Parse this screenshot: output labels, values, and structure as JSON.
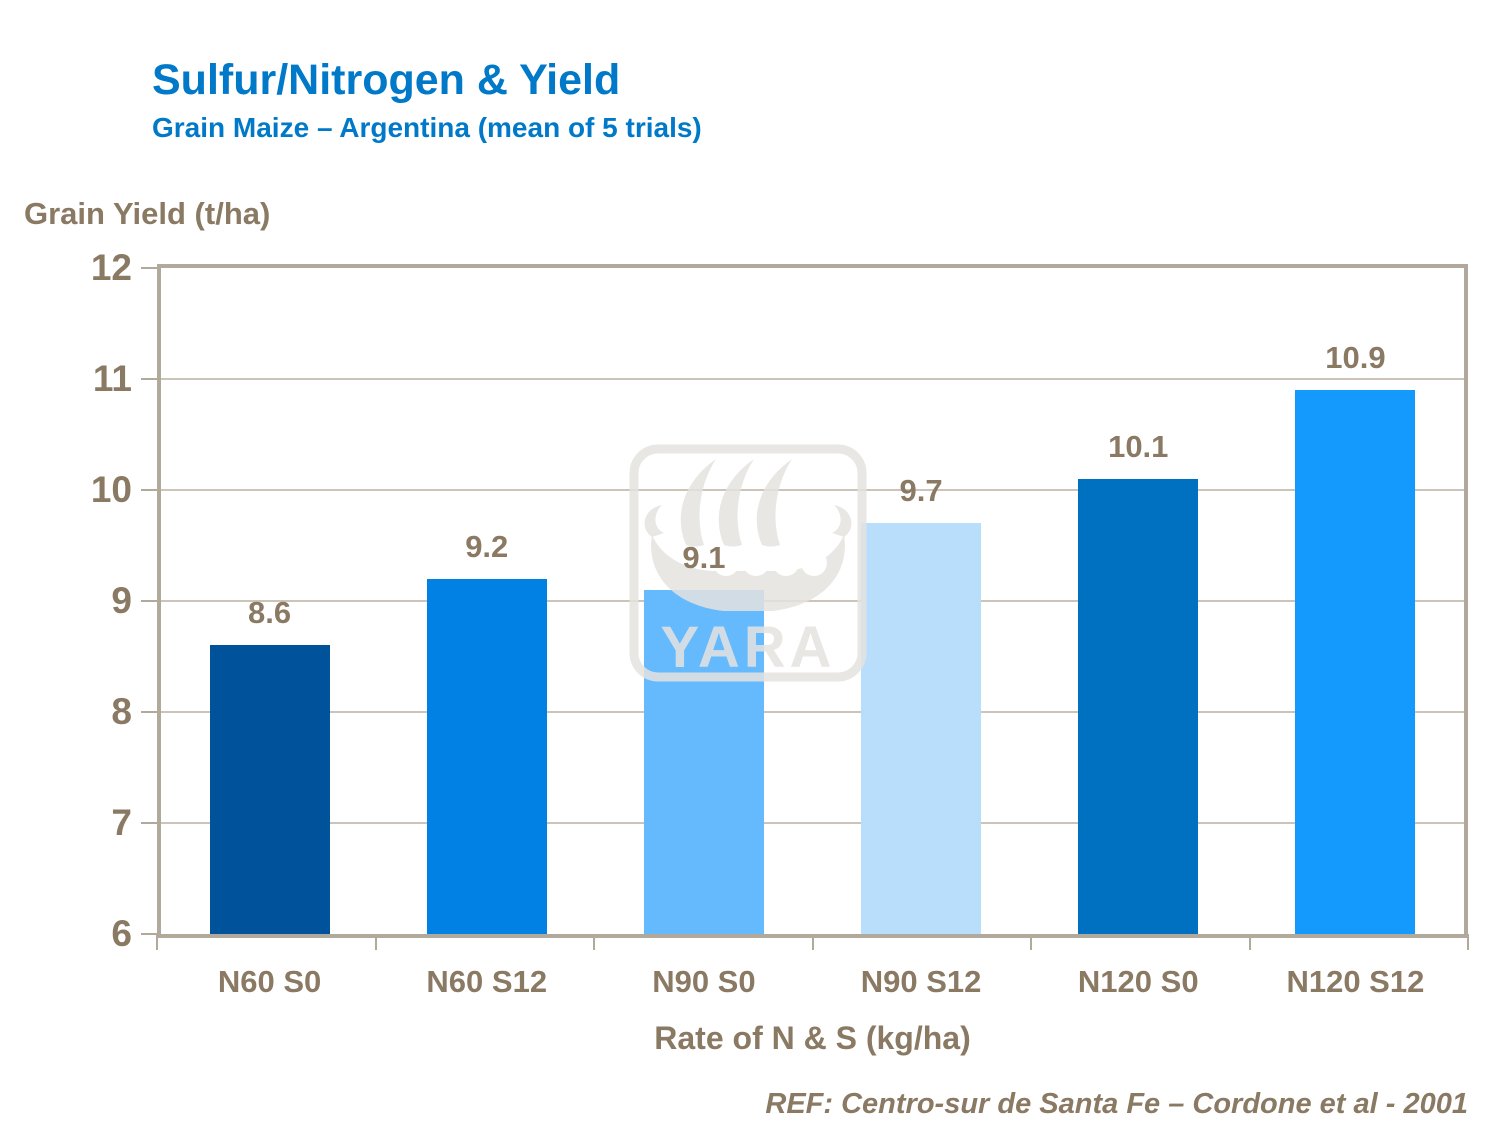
{
  "slide": {
    "title": "Sulfur/Nitrogen & Yield",
    "subtitle": "Grain Maize – Argentina (mean of 5 trials)",
    "reference": "REF: Centro-sur de Santa Fe – Cordone et al - 2001",
    "watermark_text": "YARA",
    "watermark_icon": "viking-ship-logo"
  },
  "colors": {
    "title_blue": "#0079C8",
    "text_brown": "#8A7963",
    "frame": "#B2A99D",
    "gridline": "#CCC4B8",
    "watermark_gray": "#E5E3E0",
    "bar_colors": [
      "#00539B",
      "#0081E3",
      "#64BAFC",
      "#B8DEFC",
      "#0070C0",
      "#149AFC"
    ]
  },
  "chart_data": {
    "type": "bar",
    "title": "Sulfur/Nitrogen & Yield",
    "subtitle": "Grain Maize – Argentina (mean of 5 trials)",
    "categories": [
      "N60 S0",
      "N60 S12",
      "N90 S0",
      "N90 S12",
      "N120 S0",
      "N120 S12"
    ],
    "values": [
      8.6,
      9.2,
      9.1,
      9.7,
      10.1,
      10.9
    ],
    "value_labels": [
      "8.6",
      "9.2",
      "9.1",
      "9.7",
      "10.1",
      "10.9"
    ],
    "xlabel": "Rate of N & S (kg/ha)",
    "ylabel": "Grain Yield (t/ha)",
    "ylim": [
      6,
      12
    ],
    "yticks": [
      6,
      7,
      8,
      9,
      10,
      11,
      12
    ],
    "grid": "horizontal-only",
    "legend": "none",
    "data_labels": true
  }
}
